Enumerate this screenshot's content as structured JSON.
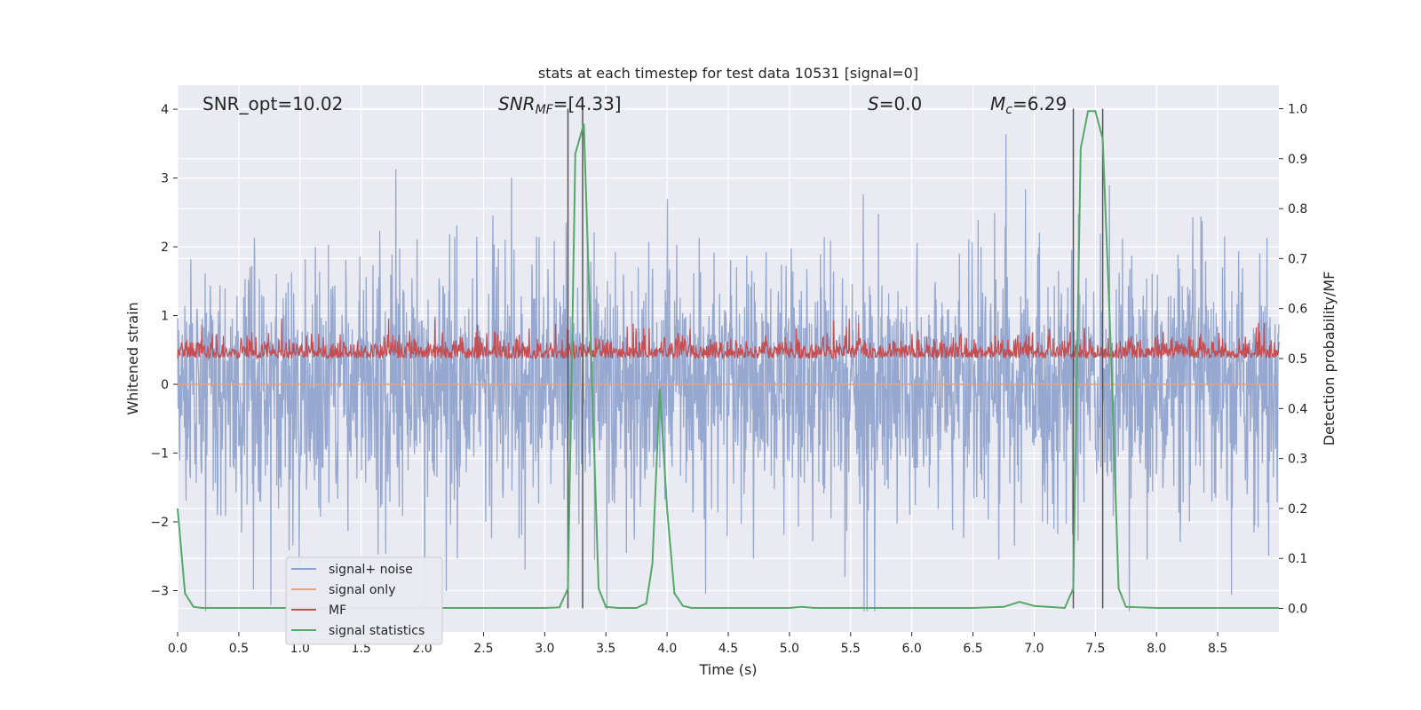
{
  "chart_data": {
    "type": "line",
    "title": "stats at each timestep for test data 10531 [signal=0]",
    "xlabel": "Time (s)",
    "ylabel_left": "Whitened strain",
    "ylabel_right": "Detection probability/MF",
    "xlim": [
      0,
      9.0
    ],
    "ylim_left": [
      -3.6,
      4.35
    ],
    "ylim_right": [
      -0.047,
      1.047
    ],
    "x_ticks": [
      0.0,
      0.5,
      1.0,
      1.5,
      2.0,
      2.5,
      3.0,
      3.5,
      4.0,
      4.5,
      5.0,
      5.5,
      6.0,
      6.5,
      7.0,
      7.5,
      8.0,
      8.5
    ],
    "x_tick_labels": [
      "0.0",
      "0.5",
      "1.0",
      "1.5",
      "2.0",
      "2.5",
      "3.0",
      "3.5",
      "4.0",
      "4.5",
      "5.0",
      "5.5",
      "6.0",
      "6.5",
      "7.0",
      "7.5",
      "8.0",
      "8.5"
    ],
    "y_left_ticks": [
      -3,
      -2,
      -1,
      0,
      1,
      2,
      3,
      4
    ],
    "y_left_tick_labels": [
      "−3",
      "−2",
      "−1",
      "0",
      "1",
      "2",
      "3",
      "4"
    ],
    "y_right_ticks": [
      0.0,
      0.1,
      0.2,
      0.3,
      0.4,
      0.5,
      0.6,
      0.7,
      0.8,
      0.9,
      1.0
    ],
    "y_right_tick_labels": [
      "0.0",
      "0.1",
      "0.2",
      "0.3",
      "0.4",
      "0.5",
      "0.6",
      "0.7",
      "0.8",
      "0.9",
      "1.0"
    ],
    "grid": true,
    "legend_position": "lower-left",
    "annotations": {
      "snr_opt": "SNR_opt=10.02",
      "snr_mf_base": "SNR",
      "snr_mf_sub": "MF",
      "snr_mf_rest": "=[4.33]",
      "s_base": "S",
      "s_rest": "=0.0",
      "mc_base": "M",
      "mc_sub": "c",
      "mc_rest": "=6.29"
    },
    "vertical_lines_x": [
      3.19,
      3.31,
      7.32,
      7.56
    ],
    "series": [
      {
        "name": "signal+ noise",
        "color": "#8da1cb",
        "axis": "left",
        "description_stats": {
          "center": 0.0,
          "envelope": [
            -1.0,
            1.1
          ],
          "peak_max": 3.75,
          "peak_min": -3.3
        }
      },
      {
        "name": "signal only",
        "color": "#e8a27f",
        "axis": "left",
        "flat_value": 0.0
      },
      {
        "name": "MF",
        "color": "#c44e52",
        "axis": "right",
        "band": [
          0.5,
          0.55
        ],
        "peak_max": 0.58
      },
      {
        "name": "signal statistics",
        "color": "#55a868",
        "axis": "right",
        "x": [
          0.0,
          0.06,
          0.13,
          0.2,
          0.5,
          1.0,
          1.5,
          2.0,
          2.5,
          3.0,
          3.12,
          3.19,
          3.25,
          3.32,
          3.38,
          3.44,
          3.5,
          3.6,
          3.75,
          3.83,
          3.88,
          3.94,
          4.0,
          4.06,
          4.13,
          4.2,
          4.5,
          5.0,
          5.1,
          5.2,
          5.5,
          6.0,
          6.5,
          6.75,
          6.88,
          7.0,
          7.25,
          7.32,
          7.38,
          7.44,
          7.5,
          7.56,
          7.63,
          7.69,
          7.75,
          8.0,
          8.5,
          9.0
        ],
        "y": [
          0.2,
          0.03,
          0.003,
          0.001,
          0.001,
          0.001,
          0.001,
          0.001,
          0.001,
          0.001,
          0.002,
          0.04,
          0.91,
          0.97,
          0.5,
          0.04,
          0.003,
          0.001,
          0.001,
          0.01,
          0.09,
          0.44,
          0.2,
          0.03,
          0.005,
          0.001,
          0.001,
          0.001,
          0.003,
          0.001,
          0.001,
          0.001,
          0.001,
          0.003,
          0.013,
          0.005,
          0.001,
          0.04,
          0.92,
          0.995,
          0.995,
          0.94,
          0.5,
          0.04,
          0.003,
          0.001,
          0.001,
          0.001
        ]
      }
    ]
  }
}
